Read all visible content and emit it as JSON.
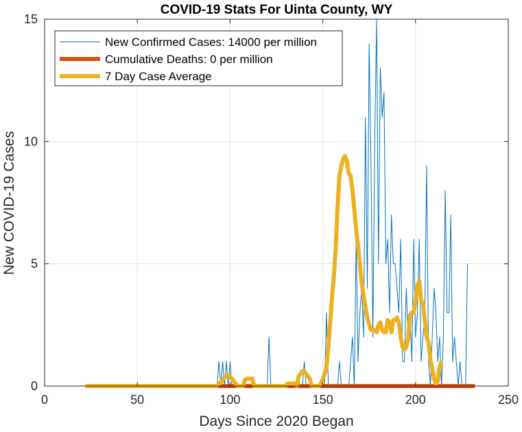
{
  "chart_data": {
    "type": "line",
    "title": "COVID-19 Stats For Uinta County, WY",
    "xlabel": "Days Since 2020 Began",
    "ylabel": "New COVID-19 Cases",
    "xlim": [
      0,
      250
    ],
    "ylim": [
      0,
      15
    ],
    "xticks": [
      0,
      50,
      100,
      150,
      200,
      250
    ],
    "yticks": [
      0,
      5,
      10,
      15
    ],
    "grid": true,
    "legend_position": "top-left",
    "series": [
      {
        "name": "New Confirmed Cases: 14000 per million",
        "color": "#0072BD",
        "x_start": 22,
        "values": [
          0,
          0,
          0,
          0,
          0,
          0,
          0,
          0,
          0,
          0,
          0,
          0,
          0,
          0,
          0,
          0,
          0,
          0,
          0,
          0,
          0,
          0,
          0,
          0,
          0,
          0,
          0,
          0,
          0,
          0,
          0,
          0,
          0,
          0,
          0,
          0,
          0,
          0,
          0,
          0,
          0,
          0,
          0,
          0,
          0,
          0,
          0,
          0,
          0,
          0,
          0,
          0,
          0,
          0,
          0,
          0,
          0,
          0,
          0,
          0,
          0,
          0,
          0,
          0,
          0,
          0,
          0,
          0,
          0,
          0,
          0,
          0,
          1,
          0,
          1,
          0,
          1,
          0,
          1,
          0,
          0,
          0,
          0,
          0,
          0,
          0,
          0,
          0,
          0,
          0,
          0,
          0,
          0,
          0,
          0,
          0,
          0,
          0,
          0,
          2,
          0,
          0,
          0,
          0,
          0,
          0,
          0,
          0,
          0,
          0,
          0,
          0,
          0,
          0,
          0,
          0,
          0,
          0,
          1,
          0,
          0,
          0,
          0,
          0,
          0,
          0,
          0,
          0,
          0,
          0,
          3,
          0,
          0,
          0,
          0,
          0,
          0,
          1,
          0,
          0,
          0,
          0,
          0,
          1,
          2,
          0,
          6,
          1,
          3,
          4,
          2,
          11,
          4,
          14,
          9,
          2,
          10,
          15,
          5,
          13,
          11,
          12,
          5,
          6,
          3,
          7,
          5,
          5,
          4,
          3,
          6,
          1,
          1,
          4,
          2,
          3,
          1,
          6,
          2,
          3,
          6,
          1,
          2,
          3,
          9,
          1,
          0,
          2,
          4,
          3,
          1,
          2,
          0,
          2,
          8,
          3,
          3,
          7,
          1,
          2,
          1,
          0,
          1,
          0,
          0,
          0,
          5
        ]
      },
      {
        "name": "Cumulative Deaths: 0 per million",
        "color": "#D95319",
        "x_start": 22,
        "x_end": 232,
        "constant": 0
      },
      {
        "name": "7 Day Case Average",
        "color": "#EDB120",
        "x_start": 22,
        "values": [
          0,
          0,
          0,
          0,
          0,
          0,
          0,
          0,
          0,
          0,
          0,
          0,
          0,
          0,
          0,
          0,
          0,
          0,
          0,
          0,
          0,
          0,
          0,
          0,
          0,
          0,
          0,
          0,
          0,
          0,
          0,
          0,
          0,
          0,
          0,
          0,
          0,
          0,
          0,
          0,
          0,
          0,
          0,
          0,
          0,
          0,
          0,
          0,
          0,
          0,
          0,
          0,
          0,
          0,
          0,
          0,
          0,
          0,
          0,
          0,
          0,
          0,
          0,
          0,
          0,
          0,
          0,
          0,
          0,
          0,
          0,
          0,
          0.1,
          0.15,
          0.25,
          0.35,
          0.4,
          0.45,
          0.4,
          0.3,
          0.2,
          0.1,
          0,
          0,
          0,
          0,
          0.25,
          0.3,
          0.3,
          0.3,
          0.3,
          0,
          0,
          0,
          0,
          0,
          0,
          0,
          0,
          0,
          0,
          0,
          0,
          0,
          0,
          0,
          0,
          0,
          0,
          0.1,
          0.1,
          0.1,
          0.1,
          0.1,
          0,
          0.4,
          0.5,
          0.6,
          0.6,
          0.5,
          0.4,
          0.3,
          0,
          0,
          0,
          0,
          0,
          0.1,
          0.3,
          0.5,
          0.8,
          1.6,
          2.6,
          3.7,
          4.5,
          5.7,
          7.4,
          8.6,
          9.0,
          9.3,
          9.4,
          9.2,
          8.7,
          8.6,
          8.0,
          7.2,
          6.4,
          5.7,
          5.0,
          4.2,
          3.7,
          3.2,
          2.8,
          2.5,
          2.3,
          2.3,
          2.3,
          2.2,
          2.5,
          2.6,
          2.3,
          2.2,
          2.2,
          2.7,
          2.6,
          2.2,
          2.7,
          2.7,
          2.8,
          2.6,
          2.0,
          1.6,
          1.5,
          1.6,
          1.9,
          2.9,
          3.0,
          3.0,
          3.5,
          4.1,
          4.3,
          3.5,
          3.4,
          2.7,
          2.0,
          1.8,
          1.1,
          0.7,
          0.3,
          0.1,
          0.2,
          0.8,
          1.0
        ]
      }
    ]
  }
}
